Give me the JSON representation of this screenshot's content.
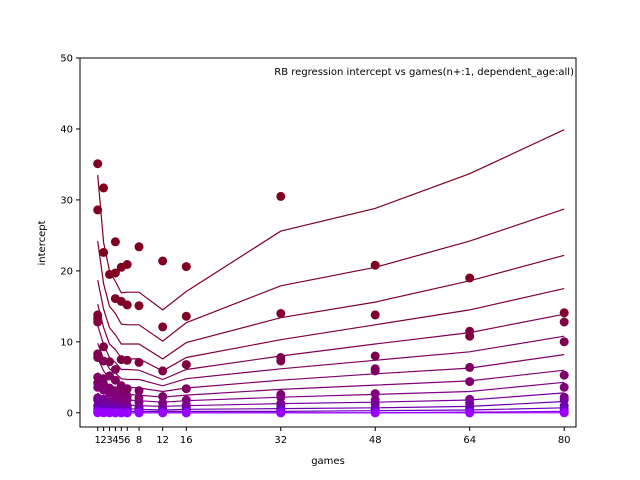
{
  "chart_data": {
    "type": "scatter",
    "title": "RB regression intercept vs games(n+:1, dependent_age:all)",
    "xlabel": "games",
    "ylabel": "intercept",
    "xlim": [
      -2,
      82
    ],
    "ylim": [
      -2,
      50
    ],
    "x_ticks": [
      1,
      2,
      3,
      4,
      5,
      6,
      8,
      12,
      16,
      32,
      48,
      64,
      80
    ],
    "x_tick_labels": [
      "1",
      "2",
      "3",
      "4",
      "5",
      "6",
      "8",
      "12",
      "16",
      "32",
      "48",
      "64",
      "80"
    ],
    "y_ticks": [
      0,
      10,
      20,
      30,
      40,
      50
    ],
    "y_tick_labels": [
      "0",
      "10",
      "20",
      "30",
      "40",
      "50"
    ],
    "grid": false,
    "line_x": [
      1,
      2,
      3,
      4,
      5,
      6,
      8,
      12,
      16,
      32,
      48,
      64,
      80
    ],
    "series": [
      {
        "color": "#800020",
        "line": [
          33.5,
          24.0,
          20.0,
          18.5,
          16.9,
          17.0,
          17.0,
          14.5,
          17.1,
          25.6,
          28.8,
          33.7,
          39.9
        ],
        "points": [
          [
            1,
            35.1
          ],
          [
            1,
            28.6
          ],
          [
            2,
            31.7
          ],
          [
            2,
            22.6
          ],
          [
            3,
            19.5
          ],
          [
            4,
            24.1
          ],
          [
            4,
            19.7
          ],
          [
            5,
            20.5
          ],
          [
            6,
            20.9
          ],
          [
            8,
            23.4
          ],
          [
            12,
            21.4
          ],
          [
            16,
            20.6
          ],
          [
            32,
            30.5
          ],
          [
            48,
            20.8
          ],
          [
            64,
            19.0
          ]
        ]
      },
      {
        "color": "#800028",
        "line": [
          24.2,
          18.2,
          15.0,
          14.0,
          12.5,
          12.4,
          12.4,
          10.1,
          12.7,
          17.9,
          20.5,
          24.2,
          28.7
        ],
        "points": [
          [
            4,
            16.1
          ],
          [
            5,
            15.7
          ],
          [
            6,
            15.2
          ],
          [
            8,
            15.1
          ],
          [
            12,
            12.1
          ],
          [
            16,
            13.6
          ]
        ]
      },
      {
        "color": "#800030",
        "line": [
          18.7,
          14.6,
          12.0,
          11.0,
          9.7,
          9.7,
          9.7,
          7.6,
          9.9,
          13.4,
          15.6,
          18.6,
          22.2
        ],
        "points": [
          [
            1,
            13.8
          ],
          [
            1,
            13.3
          ],
          [
            32,
            14.0
          ],
          [
            48,
            13.8
          ],
          [
            80,
            14.1
          ]
        ]
      },
      {
        "color": "#800040",
        "line": [
          15.3,
          12.0,
          9.7,
          8.9,
          7.7,
          7.6,
          7.6,
          5.9,
          7.8,
          10.3,
          12.4,
          14.5,
          17.5
        ],
        "points": [
          [
            1,
            12.8
          ],
          [
            2,
            9.3
          ],
          [
            3,
            7.2
          ],
          [
            5,
            7.5
          ],
          [
            6,
            7.4
          ],
          [
            8,
            7.1
          ],
          [
            12,
            5.9
          ],
          [
            16,
            6.8
          ],
          [
            64,
            11.5
          ],
          [
            64,
            10.8
          ],
          [
            80,
            12.8
          ]
        ]
      },
      {
        "color": "#800050",
        "line": [
          12.3,
          9.6,
          7.8,
          7.1,
          6.1,
          6.1,
          6.0,
          4.7,
          6.1,
          8.0,
          9.7,
          11.3,
          13.9
        ],
        "points": [
          [
            1,
            8.3
          ],
          [
            1,
            7.8
          ],
          [
            2,
            7.3
          ],
          [
            4,
            6.1
          ],
          [
            32,
            7.8
          ],
          [
            32,
            7.3
          ],
          [
            48,
            8.0
          ],
          [
            80,
            10.0
          ]
        ]
      },
      {
        "color": "#800060",
        "line": [
          9.8,
          7.6,
          6.2,
          5.6,
          4.8,
          4.7,
          4.7,
          3.8,
          4.8,
          6.2,
          7.4,
          8.6,
          10.8
        ],
        "points": [
          [
            1,
            5.0
          ],
          [
            2,
            4.8
          ],
          [
            3,
            5.2
          ],
          [
            4,
            4.6
          ],
          [
            5,
            3.8
          ],
          [
            6,
            3.4
          ],
          [
            8,
            3.1
          ],
          [
            16,
            3.4
          ],
          [
            48,
            6.2
          ],
          [
            48,
            5.9
          ],
          [
            64,
            6.4
          ]
        ]
      },
      {
        "color": "#80006a",
        "line": [
          7.7,
          5.9,
          4.8,
          4.3,
          3.7,
          3.6,
          3.5,
          3.0,
          3.5,
          4.6,
          5.5,
          6.3,
          8.2
        ],
        "points": [
          [
            1,
            4.2
          ],
          [
            2,
            4.0
          ],
          [
            3,
            3.5
          ],
          [
            4,
            3.1
          ],
          [
            5,
            2.6
          ],
          [
            6,
            2.4
          ],
          [
            8,
            2.1
          ],
          [
            12,
            2.3
          ],
          [
            32,
            2.6
          ],
          [
            64,
            4.4
          ],
          [
            80,
            5.3
          ]
        ]
      },
      {
        "color": "#800078",
        "line": [
          5.7,
          4.4,
          3.6,
          3.2,
          2.7,
          2.6,
          2.5,
          2.2,
          2.5,
          3.3,
          3.9,
          4.5,
          6.0
        ],
        "points": [
          [
            1,
            3.6
          ],
          [
            2,
            3.2
          ],
          [
            3,
            2.8
          ],
          [
            4,
            2.4
          ],
          [
            5,
            2.0
          ],
          [
            6,
            1.8
          ],
          [
            8,
            1.5
          ],
          [
            12,
            1.4
          ],
          [
            16,
            1.8
          ],
          [
            32,
            2.2
          ],
          [
            48,
            2.7
          ],
          [
            80,
            3.6
          ]
        ]
      },
      {
        "color": "#800088",
        "line": [
          4.1,
          3.1,
          2.5,
          2.2,
          1.9,
          1.8,
          1.7,
          1.5,
          1.7,
          2.2,
          2.6,
          3.0,
          4.3
        ],
        "points": [
          [
            1,
            2.1
          ],
          [
            2,
            1.9
          ],
          [
            3,
            1.6
          ],
          [
            4,
            1.4
          ],
          [
            5,
            1.1
          ],
          [
            6,
            1.0
          ],
          [
            8,
            0.9
          ],
          [
            12,
            0.8
          ],
          [
            16,
            1.1
          ],
          [
            32,
            1.3
          ],
          [
            48,
            1.8
          ],
          [
            64,
            1.9
          ],
          [
            80,
            2.2
          ]
        ]
      },
      {
        "color": "#78009a",
        "line": [
          2.8,
          2.0,
          1.6,
          1.4,
          1.2,
          1.1,
          1.0,
          0.9,
          1.0,
          1.3,
          1.5,
          1.8,
          2.8
        ],
        "points": [
          [
            1,
            1.8
          ],
          [
            2,
            1.5
          ],
          [
            3,
            1.2
          ],
          [
            4,
            1.0
          ],
          [
            5,
            0.8
          ],
          [
            6,
            0.7
          ],
          [
            8,
            0.6
          ],
          [
            12,
            0.5
          ],
          [
            16,
            0.7
          ],
          [
            32,
            0.9
          ],
          [
            48,
            1.2
          ],
          [
            64,
            1.3
          ],
          [
            80,
            1.8
          ]
        ]
      },
      {
        "color": "#7000ac",
        "line": [
          1.6,
          1.1,
          0.9,
          0.8,
          0.6,
          0.6,
          0.5,
          0.4,
          0.5,
          0.6,
          0.7,
          0.9,
          1.6
        ],
        "points": [
          [
            1,
            1.0
          ],
          [
            2,
            0.8
          ],
          [
            3,
            0.7
          ],
          [
            4,
            0.6
          ],
          [
            5,
            0.5
          ],
          [
            6,
            0.4
          ],
          [
            8,
            0.3
          ],
          [
            12,
            0.3
          ],
          [
            16,
            0.4
          ],
          [
            32,
            0.5
          ],
          [
            48,
            0.6
          ],
          [
            64,
            0.8
          ],
          [
            80,
            1.0
          ]
        ]
      },
      {
        "color": "#6800c0",
        "line": [
          0.8,
          0.5,
          0.4,
          0.3,
          0.3,
          0.2,
          0.2,
          0.2,
          0.2,
          0.2,
          0.3,
          0.4,
          0.7
        ],
        "points": [
          [
            1,
            0.5
          ],
          [
            2,
            0.4
          ],
          [
            3,
            0.3
          ],
          [
            4,
            0.3
          ],
          [
            5,
            0.2
          ],
          [
            6,
            0.2
          ],
          [
            8,
            0.2
          ],
          [
            12,
            0.1
          ],
          [
            16,
            0.2
          ],
          [
            32,
            0.3
          ],
          [
            48,
            0.3
          ],
          [
            64,
            0.4
          ],
          [
            80,
            0.5
          ]
        ]
      },
      {
        "color": "#8a00e8",
        "line": [
          0.2,
          0.1,
          0.1,
          0.1,
          0.0,
          0.0,
          0.0,
          0.0,
          0.0,
          0.0,
          0.0,
          0.1,
          0.2
        ],
        "points": [
          [
            1,
            0.2
          ],
          [
            2,
            0.1
          ],
          [
            3,
            0.1
          ],
          [
            4,
            0.0
          ],
          [
            5,
            0.0
          ],
          [
            6,
            0.0
          ],
          [
            8,
            0.0
          ],
          [
            12,
            0.0
          ],
          [
            16,
            0.0
          ],
          [
            32,
            0.0
          ],
          [
            48,
            0.0
          ],
          [
            64,
            0.0
          ],
          [
            80,
            0.1
          ]
        ]
      },
      {
        "color": "#9a00ff",
        "line": [
          0.0,
          0.0,
          0.0,
          0.0,
          0.0,
          0.0,
          0.0,
          0.0,
          0.0,
          0.0,
          0.0,
          0.0,
          0.0
        ],
        "points": [
          [
            1,
            0.0
          ],
          [
            2,
            0.0
          ],
          [
            3,
            0.0
          ],
          [
            4,
            0.0
          ],
          [
            5,
            0.0
          ],
          [
            6,
            0.0
          ],
          [
            8,
            0.0
          ],
          [
            12,
            0.0
          ],
          [
            16,
            0.0
          ],
          [
            32,
            0.0
          ],
          [
            48,
            0.0
          ],
          [
            64,
            0.0
          ],
          [
            80,
            0.0
          ]
        ]
      }
    ]
  }
}
